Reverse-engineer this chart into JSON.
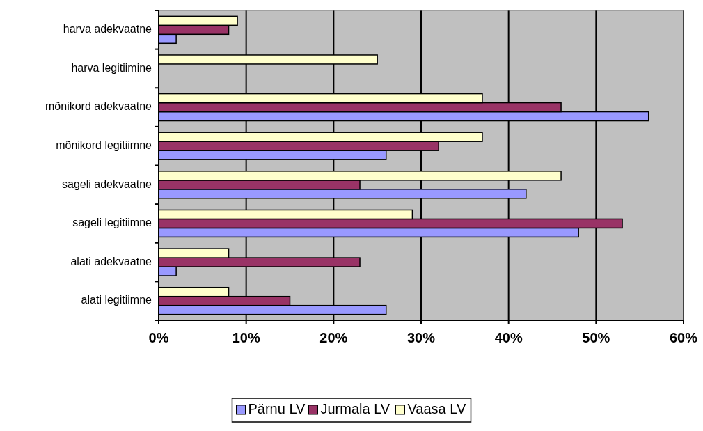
{
  "chart_data": {
    "type": "bar",
    "orientation": "horizontal",
    "categories": [
      "harva adekvaatne",
      "harva legitiimine",
      "mõnikord adekvaatne",
      "mõnikord legitiimne",
      "sageli adekvaatne",
      "sageli legitiimne",
      "alati adekvaatne",
      "alati legitiimne"
    ],
    "series": [
      {
        "name": "Pärnu LV",
        "color": "#9999ff",
        "values": [
          2,
          0,
          56,
          26,
          42,
          48,
          2,
          26
        ]
      },
      {
        "name": "Jurmala LV",
        "color": "#993366",
        "values": [
          8,
          0,
          46,
          32,
          23,
          53,
          23,
          15
        ]
      },
      {
        "name": "Vaasa LV",
        "color": "#ffffcc",
        "values": [
          9,
          25,
          37,
          37,
          46,
          29,
          8,
          8
        ]
      }
    ],
    "xlim": [
      0,
      60
    ],
    "xticks": [
      {
        "value": 0,
        "label": "0%"
      },
      {
        "value": 10,
        "label": "10%"
      },
      {
        "value": 20,
        "label": "20%"
      },
      {
        "value": 30,
        "label": "30%"
      },
      {
        "value": 40,
        "label": "40%"
      },
      {
        "value": 50,
        "label": "50%"
      },
      {
        "value": 60,
        "label": "60%"
      }
    ],
    "grid": "x",
    "legend": "bottom"
  }
}
